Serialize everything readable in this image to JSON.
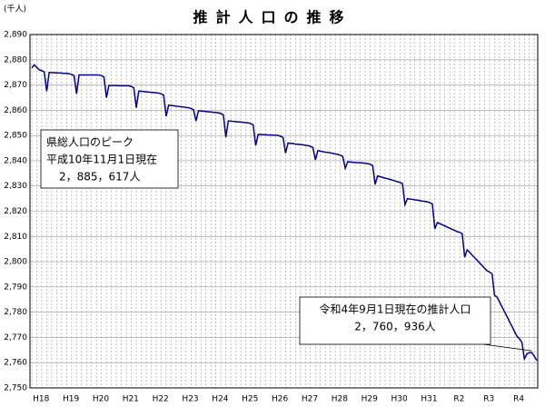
{
  "chart_data": {
    "type": "line",
    "title": "推計人口の推移",
    "y_unit": "(千人)",
    "categories": [
      null,
      null,
      null,
      "H18",
      null,
      null,
      null,
      null,
      null,
      null,
      null,
      null,
      null,
      null,
      null,
      "H19",
      null,
      null,
      null,
      null,
      null,
      null,
      null,
      null,
      null,
      null,
      null,
      "H20",
      null,
      null,
      null,
      null,
      null,
      null,
      null,
      null,
      null,
      null,
      null,
      "H21",
      null,
      null,
      null,
      null,
      null,
      null,
      null,
      null,
      null,
      null,
      null,
      "H22",
      null,
      null,
      null,
      null,
      null,
      null,
      null,
      null,
      null,
      null,
      null,
      "H23",
      null,
      null,
      null,
      null,
      null,
      null,
      null,
      null,
      null,
      null,
      null,
      "H24",
      null,
      null,
      null,
      null,
      null,
      null,
      null,
      null,
      null,
      null,
      null,
      "H25",
      null,
      null,
      null,
      null,
      null,
      null,
      null,
      null,
      null,
      null,
      null,
      "H26",
      null,
      null,
      null,
      null,
      null,
      null,
      null,
      null,
      null,
      null,
      null,
      "H27",
      null,
      null,
      null,
      null,
      null,
      null,
      null,
      null,
      null,
      null,
      null,
      "H28",
      null,
      null,
      null,
      null,
      null,
      null,
      null,
      null,
      null,
      null,
      null,
      "H29",
      null,
      null,
      null,
      null,
      null,
      null,
      null,
      null,
      null,
      null,
      null,
      "H30",
      null,
      null,
      null,
      null,
      null,
      null,
      null,
      null,
      null,
      null,
      null,
      "H31",
      null,
      null,
      null,
      null,
      null,
      null,
      null,
      null,
      null,
      null,
      null,
      "R2",
      null,
      null,
      null,
      null,
      null,
      null,
      null,
      null,
      null,
      null,
      null,
      "R3",
      null,
      null,
      null,
      null,
      null,
      null,
      null,
      null,
      null,
      null,
      null,
      "R4",
      null,
      null,
      null,
      null,
      null,
      null,
      null,
      null
    ],
    "series": [
      {
        "color": "#000080",
        "values": [
          2876.8,
          2878,
          2877,
          2876,
          2875.7,
          2875.2,
          2867.5,
          2875,
          2874.9,
          2874.9,
          2874.8,
          2874.8,
          2874.7,
          2874.6,
          2874.6,
          2874.5,
          2874.2,
          2873.7,
          2866.5,
          2874,
          2874,
          2874,
          2874,
          2874,
          2874,
          2874,
          2874,
          2874,
          2873.7,
          2873.2,
          2865,
          2869.8,
          2869.8,
          2869.8,
          2869.8,
          2869.7,
          2869.7,
          2869.7,
          2869.7,
          2869.7,
          2869.4,
          2868.9,
          2861,
          2867.6,
          2867.5,
          2867.4,
          2867.3,
          2867.2,
          2867.1,
          2867.0,
          2866.9,
          2866.8,
          2866.5,
          2866.0,
          2857.6,
          2862,
          2861.9,
          2861.8,
          2861.6,
          2861.5,
          2861.4,
          2861.3,
          2861.1,
          2861,
          2860.7,
          2860.2,
          2855.8,
          2859.8,
          2859.7,
          2859.6,
          2859.5,
          2859.4,
          2859.3,
          2859.2,
          2859.1,
          2859,
          2858.7,
          2858.2,
          2849.3,
          2855.8,
          2855.7,
          2855.6,
          2855.5,
          2855.4,
          2855.3,
          2855.2,
          2855.1,
          2855,
          2854.7,
          2854.2,
          2846,
          2850.4,
          2850.4,
          2850.3,
          2850.3,
          2850.2,
          2850.2,
          2850.1,
          2850.1,
          2850,
          2849.7,
          2849.2,
          2843,
          2847,
          2846.9,
          2846.8,
          2846.6,
          2846.5,
          2846.4,
          2846.3,
          2846.1,
          2846,
          2845.7,
          2845.2,
          2840.3,
          2844,
          2843.8,
          2843.6,
          2843.4,
          2843.3,
          2843.1,
          2842.9,
          2842.7,
          2842.5,
          2842.2,
          2841.7,
          2837,
          2839.6,
          2839.5,
          2839.4,
          2839.3,
          2839.2,
          2839.2,
          2839.1,
          2839.0,
          2838.9,
          2838.6,
          2838.1,
          2830.6,
          2834,
          2833.7,
          2833.4,
          2833.1,
          2832.9,
          2832.6,
          2832.3,
          2832.0,
          2831.7,
          2831.4,
          2830.9,
          2822.6,
          2825,
          2824.8,
          2824.7,
          2824.5,
          2824.4,
          2824.2,
          2824.0,
          2823.9,
          2823.7,
          2823.4,
          2822.9,
          2813,
          2815.5,
          2815.1,
          2814.6,
          2814.2,
          2813.7,
          2813.3,
          2812.8,
          2812.4,
          2811.9,
          2811.6,
          2811.1,
          2801.8,
          2804.7,
          2803.7,
          2802.6,
          2801.6,
          2800.6,
          2799.5,
          2798.5,
          2797.4,
          2796.4,
          2795.9,
          2795.2,
          2786.7,
          2786,
          2784.1,
          2782.1,
          2780.2,
          2778.3,
          2776.3,
          2774.4,
          2772.4,
          2770.5,
          2769.5,
          2768,
          2761.5,
          2763.5,
          2764,
          2764,
          2762.5,
          2760.9
        ]
      }
    ],
    "ylim": [
      2750,
      2890
    ],
    "yticks": [
      {
        "value": 2750,
        "label": "2,750"
      },
      {
        "value": 2760,
        "label": "2,760"
      },
      {
        "value": 2770,
        "label": "2,770"
      },
      {
        "value": 2780,
        "label": "2,780"
      },
      {
        "value": 2790,
        "label": "2,790"
      },
      {
        "value": 2800,
        "label": "2,800"
      },
      {
        "value": 2810,
        "label": "2,810"
      },
      {
        "value": 2820,
        "label": "2,820"
      },
      {
        "value": 2830,
        "label": "2,830"
      },
      {
        "value": 2840,
        "label": "2,840"
      },
      {
        "value": 2850,
        "label": "2,850"
      },
      {
        "value": 2860,
        "label": "2,860"
      },
      {
        "value": 2870,
        "label": "2,870"
      },
      {
        "value": 2880,
        "label": "2,880"
      },
      {
        "value": 2890,
        "label": "2,890"
      }
    ],
    "grid": true,
    "annotations": [
      {
        "lines": [
          "県総人口のピーク",
          "平成10年11月1日現在",
          "2，885，617人"
        ]
      },
      {
        "lines": [
          "令和4年9月1日現在の推計人口",
          "2，760，936人"
        ]
      }
    ]
  }
}
